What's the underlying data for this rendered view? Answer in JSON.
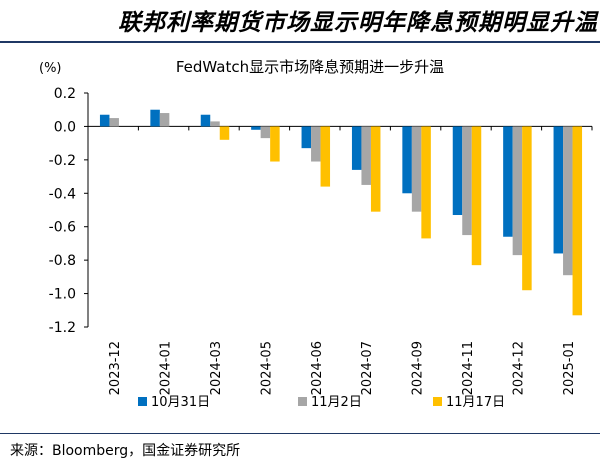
{
  "header": {
    "title": "联邦利率期货市场显示明年降息预期明显升温"
  },
  "footer": {
    "source": "来源：Bloomberg，国金证券研究所"
  },
  "chart_data": {
    "type": "bar",
    "title": "FedWatch显示市场降息预期进一步升温",
    "unit_label": "(%)",
    "categories": [
      "2023-12",
      "2024-01",
      "2024-03",
      "2024-05",
      "2024-06",
      "2024-07",
      "2024-09",
      "2024-11",
      "2024-12",
      "2025-01"
    ],
    "series": [
      {
        "name": "10月31日",
        "color": "#0070c0",
        "values": [
          0.07,
          0.1,
          0.07,
          -0.02,
          -0.13,
          -0.26,
          -0.4,
          -0.53,
          -0.66,
          -0.76
        ]
      },
      {
        "name": "11月2日",
        "color": "#a6a6a6",
        "values": [
          0.05,
          0.08,
          0.03,
          -0.07,
          -0.21,
          -0.35,
          -0.51,
          -0.65,
          -0.77,
          -0.89
        ]
      },
      {
        "name": "11月17日",
        "color": "#ffc000",
        "values": [
          0.0,
          0.0,
          -0.08,
          -0.21,
          -0.36,
          -0.51,
          -0.67,
          -0.83,
          -0.98,
          -1.13
        ]
      }
    ],
    "ylim": [
      -1.2,
      0.2
    ],
    "yticks": [
      "0.2",
      "0.0",
      "-0.2",
      "-0.4",
      "-0.6",
      "-0.8",
      "-1.0",
      "-1.2"
    ],
    "legend": "bottom",
    "grid": false
  }
}
